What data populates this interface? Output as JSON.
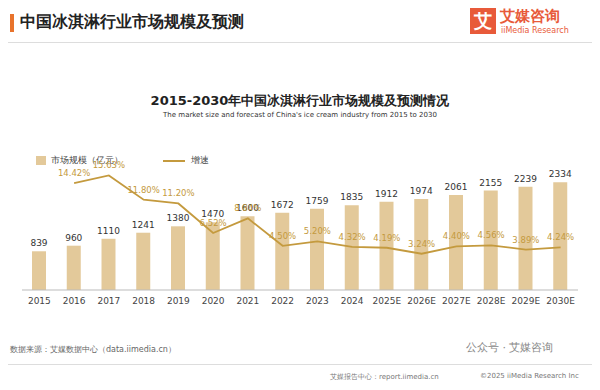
{
  "header": {
    "title": "中国冰淇淋行业市场规模及预测",
    "logo_mark": "艾",
    "logo_name": "艾媒咨询",
    "logo_en": "iiMedia Research"
  },
  "chart_data": {
    "type": "bar",
    "title": "2015-2030年中国冰淇淋行业市场规模及预测情况",
    "subtitle": "The market size and forecast of China's ice cream industry from 2015 to 2030",
    "source": "数据来源：艾媒数据中心（data.iimedia.cn）",
    "categories": [
      "2015",
      "2016",
      "2017",
      "2018",
      "2019",
      "2020",
      "2021",
      "2022",
      "2023",
      "2024",
      "2025E",
      "2026E",
      "2027E",
      "2028E",
      "2029E",
      "2030E"
    ],
    "series": [
      {
        "name": "市场规模（亿元）",
        "type": "bar",
        "color": "#e3c99a",
        "data_labels": true,
        "values": [
          839,
          960,
          1110,
          1241,
          1380,
          1470,
          1600,
          1672,
          1759,
          1835,
          1912,
          1974,
          2061,
          2155,
          2239,
          2334
        ]
      },
      {
        "name": "增速",
        "type": "line",
        "axis": "y2",
        "color": "#c49a3e",
        "marker": "none",
        "data_labels": true,
        "values": [
          null,
          14.42,
          15.63,
          11.8,
          11.2,
          6.52,
          8.84,
          4.5,
          5.2,
          4.32,
          4.19,
          3.24,
          4.4,
          4.56,
          3.89,
          4.24
        ],
        "value_labels": [
          null,
          "14.42%",
          "15.63%",
          "11.80%",
          "11.20%",
          "6.52%",
          "8.84%",
          "4.50%",
          "5.20%",
          "4.32%",
          "4.19%",
          "3.24%",
          "4.40%",
          "4.56%",
          "3.89%",
          "4.24%"
        ]
      }
    ],
    "ylim": [
      0,
      2600
    ],
    "yticks": [
      0,
      2600
    ],
    "y2lim": [
      -2.5,
      16.5
    ],
    "y2ticks": [
      -2.5,
      16.5
    ],
    "tick_labels": "x",
    "legend": "upper left",
    "grid": false
  },
  "watermark": "公众号 · 艾媒咨询",
  "footer": {
    "left": "艾媒报告中心：report.iimedia.cn",
    "right": "©2025  iiMedia Research Inc"
  }
}
